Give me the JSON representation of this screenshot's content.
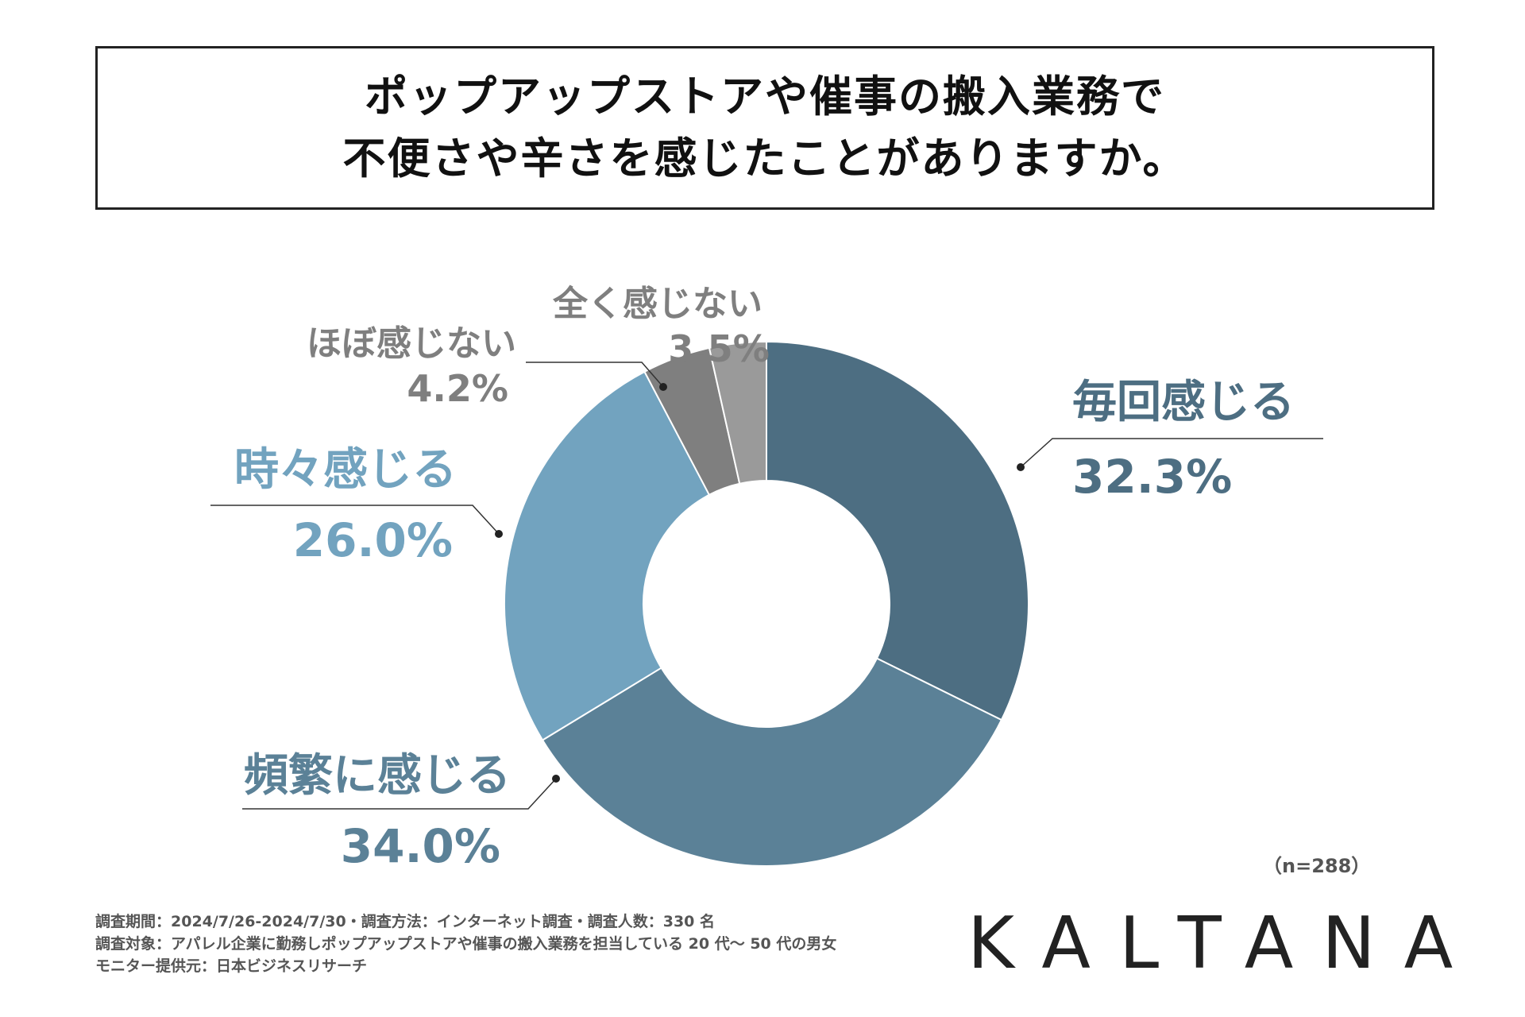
{
  "title": {
    "line1": "ポップアップストアや催事の搬入業務で",
    "line2": "不便さや辛さを感じたことがありますか。"
  },
  "chart_data": {
    "type": "pie",
    "title": "ポップアップストアや催事の搬入業務で不便さや辛さを感じたことがありますか。",
    "donut": true,
    "categories": [
      "毎回感じる",
      "頻繁に感じる",
      "時々感じる",
      "ほぼ感じない",
      "全く感じない"
    ],
    "values": [
      32.3,
      34.0,
      26.0,
      4.2,
      3.5
    ],
    "value_labels": [
      "32.3%",
      "34.0%",
      "26.0%",
      "4.2%",
      "3.5%"
    ],
    "colors": [
      "#4d6e82",
      "#5b8197",
      "#72a3bf",
      "#7f7f7f",
      "#9a9a9a"
    ],
    "label_colors": [
      "#4d6e82",
      "#5b8197",
      "#72a3bf",
      "#7f7f7f",
      "#7f7f7f"
    ],
    "start": "top",
    "direction": "clockwise"
  },
  "sample_size": "（n=288）",
  "footer": {
    "line1": "調査期間：2024/7/26-2024/7/30・調査方法：インターネット調査・調査人数：330 名",
    "line2": "調査対象：アパレル企業に勤務しポップアップストアや催事の搬入業務を担当している 20 代〜 50 代の男女",
    "line3": "モニター提供元：日本ビジネスリサーチ"
  },
  "logo": "KALTANA"
}
